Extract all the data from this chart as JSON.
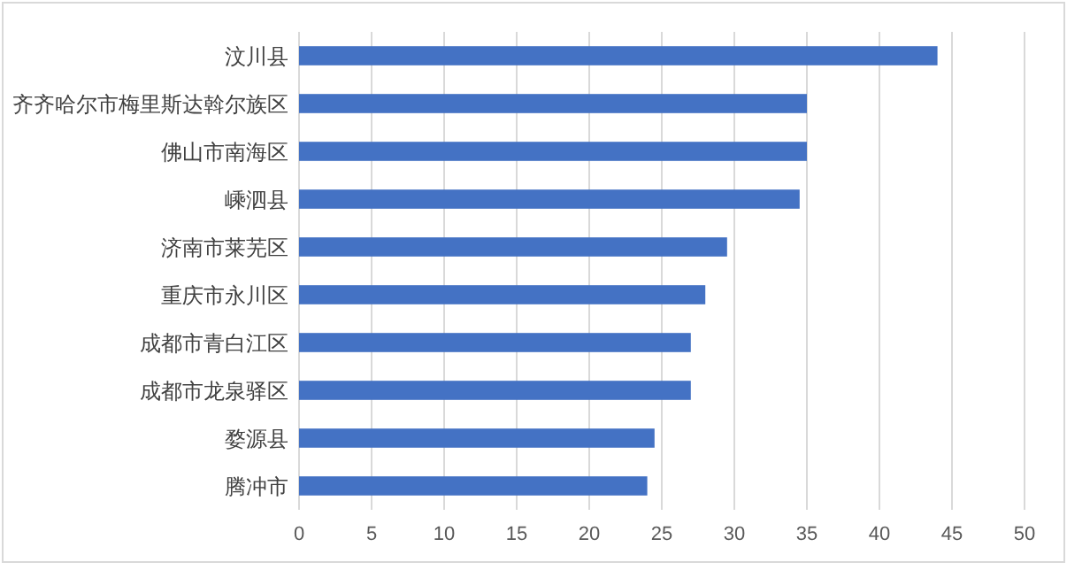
{
  "chart_data": {
    "type": "bar",
    "orientation": "horizontal",
    "categories": [
      "汶川县",
      "齐齐哈尔市梅里斯达斡尔族区",
      "佛山市南海区",
      "嵊泗县",
      "济南市莱芜区",
      "重庆市永川区",
      "成都市青白江区",
      "成都市龙泉驿区",
      "婺源县",
      "腾冲市"
    ],
    "values": [
      44,
      35,
      35,
      34.5,
      29.5,
      28,
      27,
      27,
      24.5,
      24
    ],
    "color": "#4472c4",
    "xlim": [
      0,
      50
    ],
    "xticks": [
      0,
      5,
      10,
      15,
      20,
      25,
      30,
      35,
      40,
      45,
      50
    ],
    "grid": "x"
  }
}
